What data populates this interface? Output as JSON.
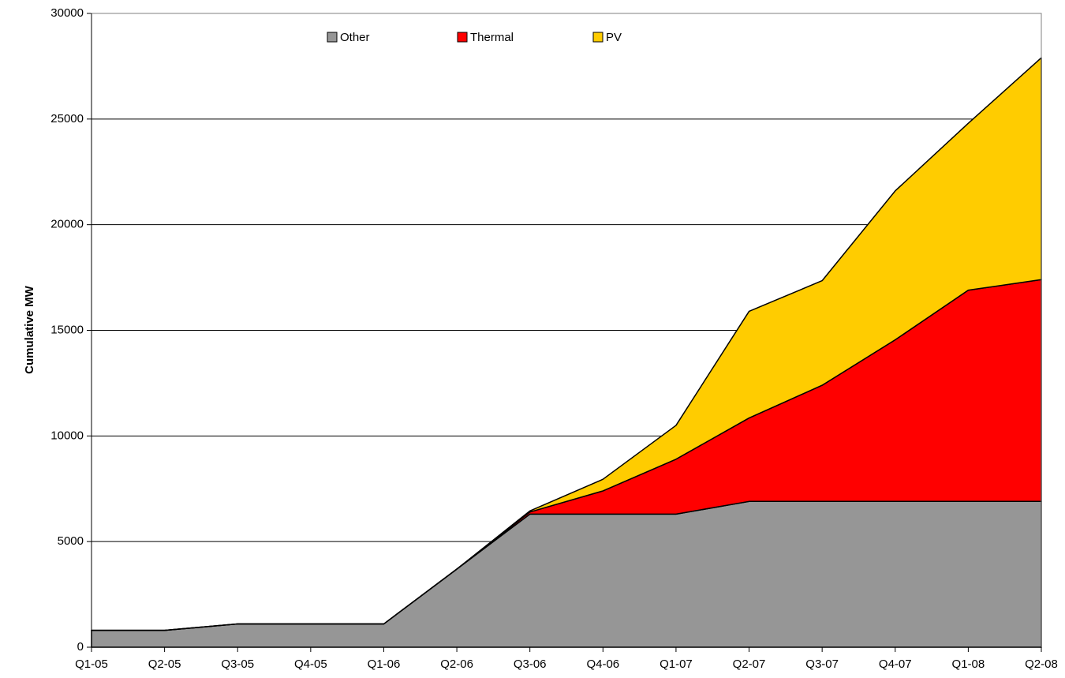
{
  "chart_data": {
    "type": "stacked_area",
    "y_label": "Cumulative MW",
    "categories": [
      "Q1-05",
      "Q2-05",
      "Q3-05",
      "Q4-05",
      "Q1-06",
      "Q2-06",
      "Q3-06",
      "Q4-06",
      "Q1-07",
      "Q2-07",
      "Q3-07",
      "Q4-07",
      "Q1-08",
      "Q2-08"
    ],
    "series": [
      {
        "name": "Other",
        "color": "#969696",
        "values": [
          800,
          800,
          1100,
          1100,
          1100,
          3700,
          6300,
          6300,
          6300,
          6900,
          6900,
          6900,
          6900,
          6900
        ]
      },
      {
        "name": "Thermal",
        "color": "#ff0000",
        "values": [
          0,
          0,
          0,
          0,
          0,
          0,
          100,
          1100,
          2600,
          3950,
          5500,
          7650,
          10000,
          10500
        ]
      },
      {
        "name": "PV",
        "color": "#ffcc00",
        "values": [
          0,
          0,
          0,
          0,
          0,
          0,
          50,
          550,
          1600,
          5050,
          4950,
          7050,
          7900,
          10500
        ]
      }
    ],
    "ylim": [
      0,
      30000
    ],
    "yticks": [
      0,
      5000,
      10000,
      15000,
      20000,
      25000,
      30000
    ],
    "grid": true,
    "legend": "top"
  }
}
